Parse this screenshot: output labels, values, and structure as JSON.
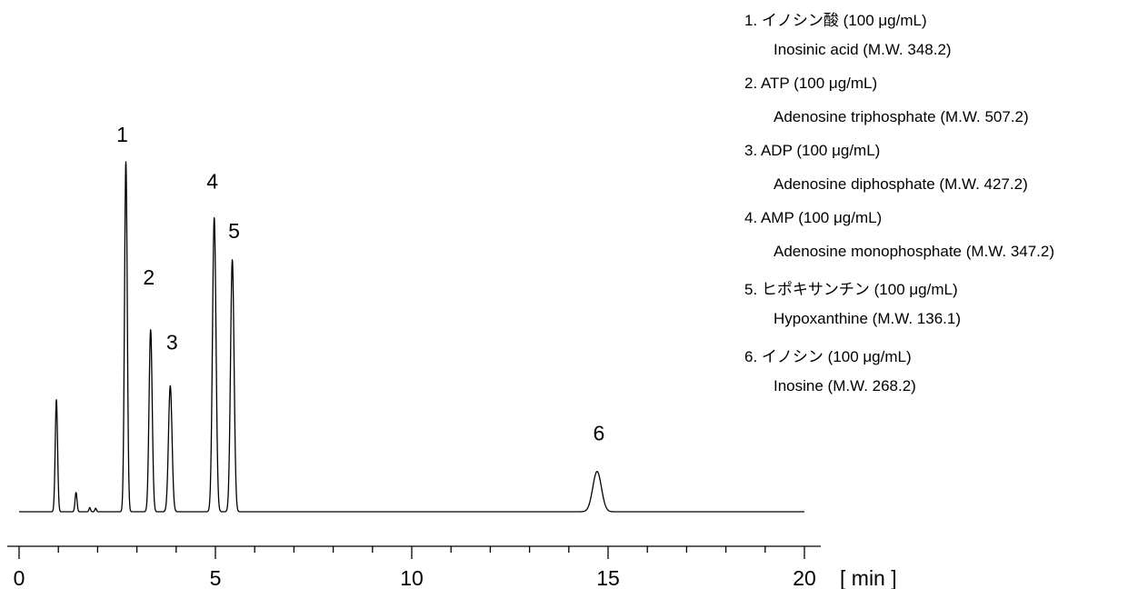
{
  "chart_data": {
    "type": "line",
    "title": "",
    "xlabel": "[ min ]",
    "ylabel": "",
    "xlim": [
      0,
      20
    ],
    "x_ticks": [
      0,
      5,
      10,
      15,
      20
    ],
    "minor_tick_step": 1,
    "y_axis_shown": false,
    "grid": false,
    "legend_placement": "top-right",
    "line_color": "#000000",
    "baseline": 0,
    "peaks": [
      {
        "label": "",
        "time": 0.95,
        "height": 0.32,
        "width": 0.03
      },
      {
        "label": "",
        "time": 1.45,
        "height": 0.055,
        "width": 0.025
      },
      {
        "label": "",
        "time": 1.8,
        "height": 0.012,
        "width": 0.02
      },
      {
        "label": "",
        "time": 1.95,
        "height": 0.01,
        "width": 0.02
      },
      {
        "label": "1",
        "time": 2.72,
        "height": 1.0,
        "width": 0.035
      },
      {
        "label": "2",
        "time": 3.35,
        "height": 0.52,
        "width": 0.04
      },
      {
        "label": "3",
        "time": 3.85,
        "height": 0.36,
        "width": 0.045
      },
      {
        "label": "4",
        "time": 4.97,
        "height": 0.84,
        "width": 0.045
      },
      {
        "label": "5",
        "time": 5.43,
        "height": 0.72,
        "width": 0.045
      },
      {
        "label": "6",
        "time": 14.72,
        "height": 0.115,
        "width": 0.11
      }
    ],
    "peak_labels": [
      "1",
      "2",
      "3",
      "4",
      "5",
      "6"
    ]
  },
  "legend": [
    {
      "main": "1. イノシン酸  (100 μg/mL)",
      "sub": "Inosinic acid (M.W. 348.2)"
    },
    {
      "main": "2. ATP (100 μg/mL)",
      "sub": "Adenosine triphosphate (M.W. 507.2)"
    },
    {
      "main": "3. ADP (100 μg/mL)",
      "sub": "Adenosine diphosphate (M.W. 427.2)"
    },
    {
      "main": "4. AMP (100 μg/mL)",
      "sub": "Adenosine monophosphate (M.W. 347.2)"
    },
    {
      "main": "5. ヒポキサンチン  (100 μg/mL)",
      "sub": "Hypoxanthine (M.W. 136.1)"
    },
    {
      "main": "6. イノシン  (100 μg/mL)",
      "sub": "Inosine (M.W. 268.2)"
    }
  ]
}
